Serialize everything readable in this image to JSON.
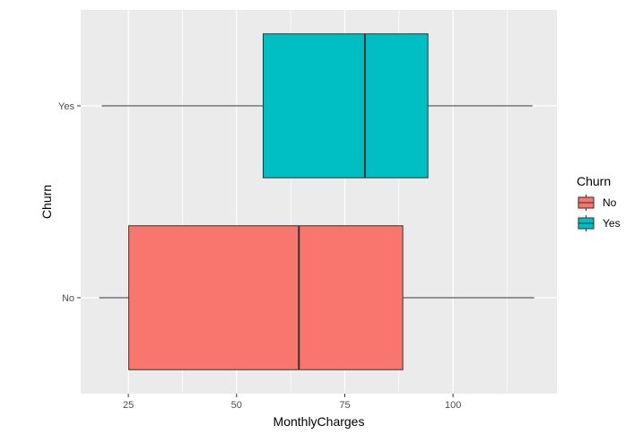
{
  "chart_data": {
    "type": "boxplot",
    "orientation": "horizontal",
    "xlabel": "MonthlyCharges",
    "ylabel": "Churn",
    "xlim": [
      14,
      124
    ],
    "xticks": [
      25,
      50,
      75,
      100
    ],
    "categories": [
      "No",
      "Yes"
    ],
    "grid": true,
    "legend": {
      "title": "Churn",
      "position": "right",
      "entries": [
        {
          "label": "No",
          "color": "#F8766D"
        },
        {
          "label": "Yes",
          "color": "#00BFC4"
        }
      ]
    },
    "boxes": [
      {
        "category": "No",
        "min": 18.25,
        "q1": 25.1,
        "median": 64.4,
        "q3": 88.4,
        "max": 118.75,
        "color": "#F8766D"
      },
      {
        "category": "Yes",
        "min": 18.85,
        "q1": 56.15,
        "median": 79.65,
        "q3": 94.2,
        "max": 118.35,
        "color": "#00BFC4"
      }
    ]
  },
  "colors": {
    "panel_background": "#EBEBEB",
    "grid": "#FFFFFF",
    "outline": "#333333"
  }
}
